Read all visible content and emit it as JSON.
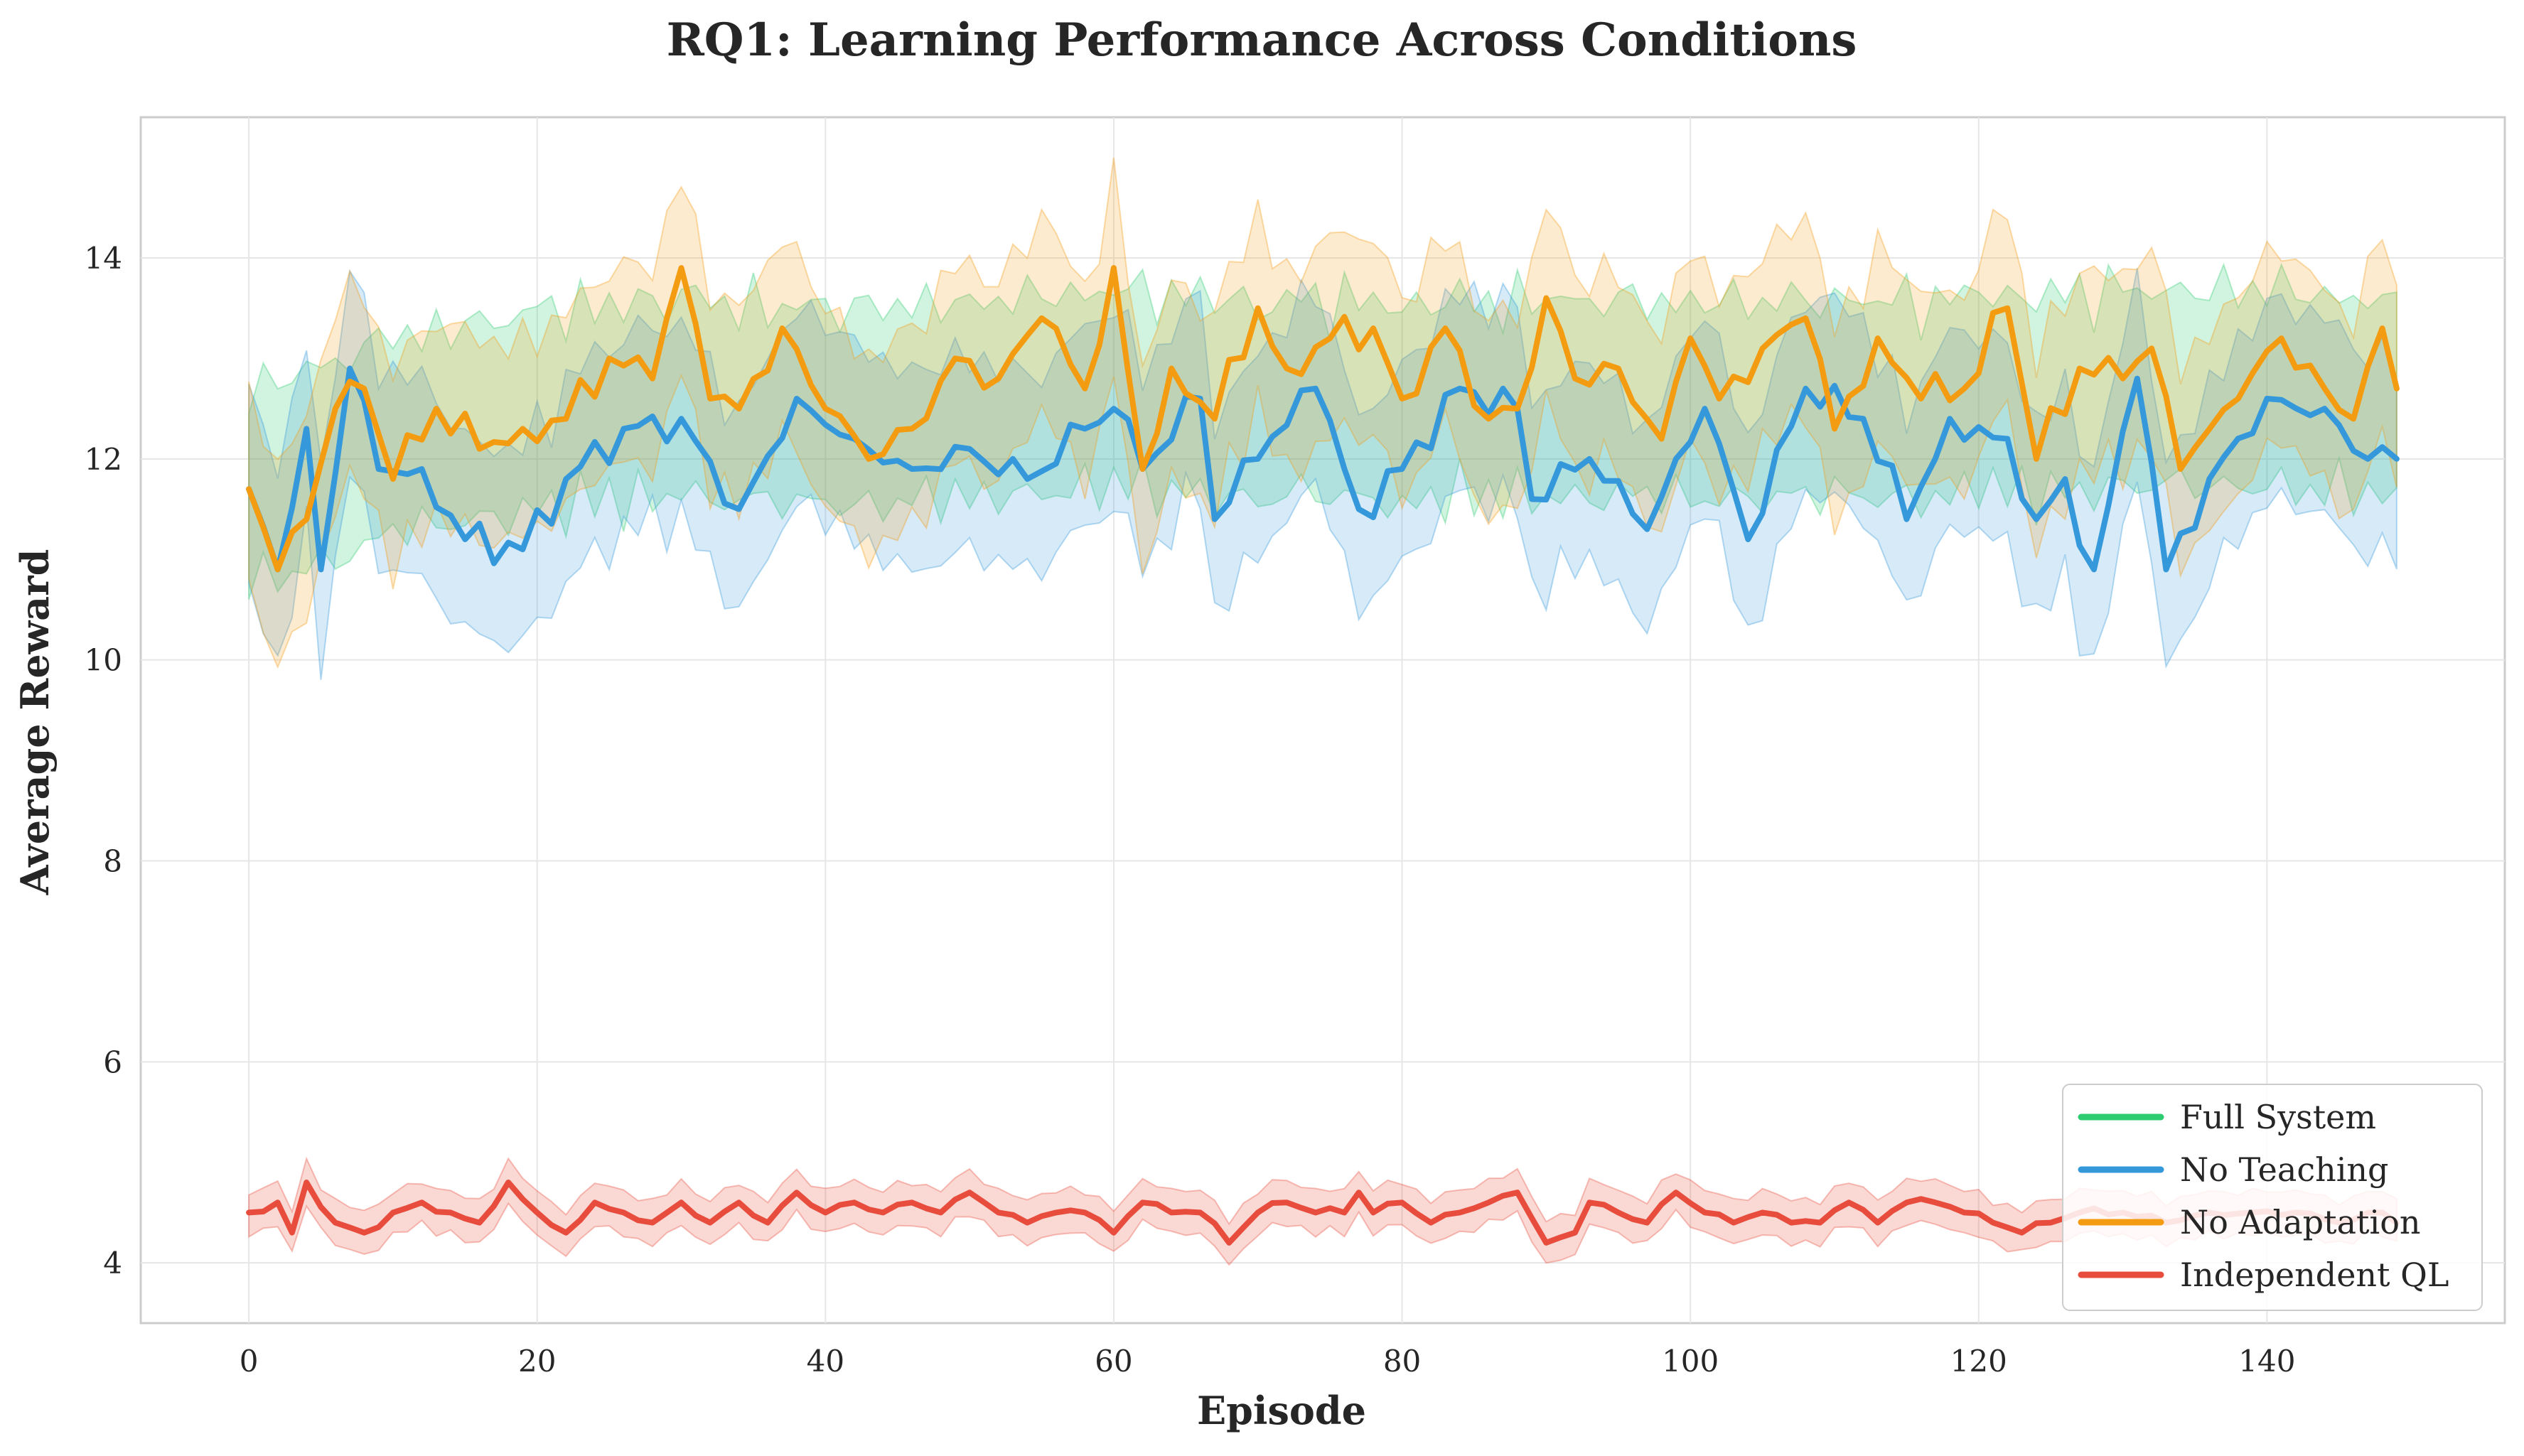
{
  "chart_data": {
    "type": "line",
    "title": "RQ1: Learning Performance Across Conditions",
    "xlabel": "Episode",
    "ylabel": "Average Reward",
    "xlim": [
      -7.5,
      156.5
    ],
    "ylim": [
      3.4,
      15.4
    ],
    "xticks": [
      0,
      20,
      40,
      60,
      80,
      100,
      120,
      140
    ],
    "yticks": [
      4,
      6,
      8,
      10,
      12,
      14
    ],
    "grid": true,
    "legend_position": "lower-right",
    "legend_entries": [
      "Full System",
      "No Teaching",
      "No Adaptation",
      "Independent QL"
    ],
    "band": "shaded region shows variability around each mean",
    "series": [
      {
        "name": "Full System",
        "color": "#2ecc71",
        "visible_line": false,
        "x": [
          0,
          10,
          20,
          30,
          40,
          50,
          60,
          70,
          80,
          90,
          100,
          110,
          120,
          130,
          140,
          149
        ],
        "values": [
          11.7,
          12.2,
          12.5,
          12.6,
          12.5,
          12.6,
          12.7,
          12.6,
          12.6,
          12.6,
          12.6,
          12.6,
          12.6,
          12.7,
          12.7,
          12.6
        ],
        "band_width": 1.0
      },
      {
        "name": "No Teaching",
        "color": "#3498db",
        "visible_line": true,
        "x": [
          0,
          2,
          4,
          5,
          7,
          9,
          12,
          15,
          19,
          22,
          26,
          30,
          34,
          38,
          42,
          46,
          50,
          54,
          58,
          60,
          62,
          66,
          67,
          70,
          74,
          77,
          80,
          84,
          88,
          89,
          93,
          97,
          101,
          104,
          108,
          112,
          115,
          118,
          122,
          124,
          126,
          128,
          131,
          133,
          136,
          140,
          144,
          147,
          149
        ],
        "values": [
          11.7,
          10.9,
          12.3,
          10.9,
          12.9,
          11.9,
          11.9,
          11.2,
          11.1,
          11.8,
          12.3,
          12.4,
          11.5,
          12.6,
          12.2,
          11.9,
          12.1,
          11.8,
          12.3,
          12.5,
          11.9,
          12.6,
          11.4,
          12.0,
          12.7,
          11.5,
          11.9,
          12.7,
          12.5,
          11.6,
          12.0,
          11.3,
          12.5,
          11.2,
          12.7,
          12.4,
          11.4,
          12.4,
          12.2,
          11.4,
          11.8,
          10.9,
          12.8,
          10.9,
          11.8,
          12.6,
          12.5,
          12.0,
          12.0
        ],
        "band_width": 1.0
      },
      {
        "name": "No Adaptation",
        "color": "#f39c12",
        "visible_line": true,
        "x": [
          0,
          2,
          4,
          6,
          8,
          10,
          13,
          16,
          19,
          22,
          25,
          28,
          30,
          32,
          34,
          37,
          40,
          43,
          46,
          49,
          52,
          55,
          58,
          60,
          62,
          64,
          67,
          70,
          72,
          75,
          78,
          80,
          83,
          86,
          88,
          90,
          92,
          95,
          98,
          100,
          102,
          105,
          108,
          110,
          113,
          116,
          119,
          122,
          124,
          127,
          130,
          132,
          134,
          138,
          141,
          144,
          146,
          148,
          149
        ],
        "values": [
          11.7,
          10.9,
          11.4,
          12.5,
          12.7,
          11.8,
          12.5,
          12.1,
          12.3,
          12.4,
          13.0,
          12.8,
          13.9,
          12.6,
          12.5,
          13.3,
          12.5,
          12.0,
          12.3,
          13.0,
          12.8,
          13.4,
          12.7,
          13.9,
          11.9,
          12.9,
          12.4,
          13.5,
          12.9,
          13.2,
          13.3,
          12.6,
          13.3,
          12.4,
          12.5,
          13.6,
          12.8,
          12.9,
          12.2,
          13.2,
          12.6,
          13.1,
          13.4,
          12.3,
          13.2,
          12.6,
          12.7,
          13.5,
          12.0,
          12.9,
          12.8,
          13.1,
          11.9,
          12.6,
          13.2,
          12.7,
          12.4,
          13.3,
          12.7
        ],
        "band_width": 1.0
      },
      {
        "name": "Independent QL",
        "color": "#e74c3c",
        "visible_line": true,
        "x": [
          0,
          2,
          3,
          4,
          6,
          8,
          10,
          12,
          14,
          16,
          18,
          20,
          22,
          24,
          26,
          28,
          30,
          32,
          34,
          36,
          38,
          40,
          42,
          44,
          46,
          48,
          50,
          52,
          54,
          56,
          58,
          60,
          62,
          64,
          66,
          68,
          70,
          72,
          74,
          76,
          77,
          78,
          80,
          82,
          84,
          86,
          88,
          90,
          92,
          93,
          95,
          97,
          99,
          101,
          103,
          105,
          107,
          109,
          111,
          113,
          115,
          117,
          119,
          121,
          123,
          125,
          127,
          130,
          133,
          136,
          139,
          142,
          145,
          148,
          149
        ],
        "values": [
          4.5,
          4.6,
          4.3,
          4.8,
          4.4,
          4.3,
          4.5,
          4.6,
          4.5,
          4.4,
          4.8,
          4.5,
          4.3,
          4.6,
          4.5,
          4.4,
          4.6,
          4.4,
          4.6,
          4.4,
          4.7,
          4.5,
          4.6,
          4.5,
          4.6,
          4.5,
          4.7,
          4.5,
          4.4,
          4.5,
          4.5,
          4.3,
          4.6,
          4.5,
          4.5,
          4.2,
          4.5,
          4.6,
          4.5,
          4.5,
          4.7,
          4.5,
          4.6,
          4.4,
          4.5,
          4.6,
          4.7,
          4.2,
          4.3,
          4.6,
          4.5,
          4.4,
          4.7,
          4.5,
          4.4,
          4.5,
          4.4,
          4.4,
          4.6,
          4.4,
          4.6,
          4.6,
          4.5,
          4.4,
          4.3,
          4.4,
          4.5,
          4.5,
          4.4,
          4.5,
          4.5,
          4.5,
          4.4,
          4.5,
          4.4
        ],
        "band_width": 0.22
      }
    ]
  }
}
